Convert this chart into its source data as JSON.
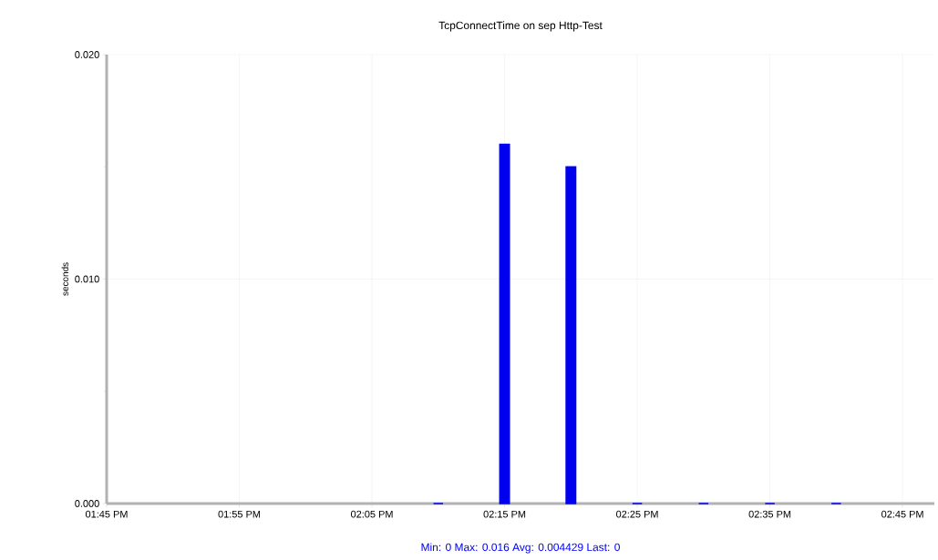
{
  "chart_data": {
    "type": "bar",
    "title": "TcpConnectTime on sep Http-Test",
    "ylabel": "seconds",
    "x": [
      14.166667,
      14.25,
      14.333333,
      14.416667,
      14.5,
      14.583333,
      14.666667
    ],
    "values": [
      0,
      0.016,
      0.015,
      0,
      0,
      0,
      0
    ],
    "color": "#0000ee",
    "xlim": [
      13.75,
      14.79
    ],
    "ylim": [
      0,
      0.02
    ],
    "xticks": [
      {
        "value": 13.75,
        "label": "01:45 PM"
      },
      {
        "value": 13.916667,
        "label": "01:55 PM"
      },
      {
        "value": 14.083333,
        "label": "02:05 PM"
      },
      {
        "value": 14.25,
        "label": "02:15 PM"
      },
      {
        "value": 14.416667,
        "label": "02:25 PM"
      },
      {
        "value": 14.583333,
        "label": "02:35 PM"
      },
      {
        "value": 14.75,
        "label": "02:45 PM"
      }
    ],
    "yticks": [
      {
        "value": 0,
        "label": "0.000"
      },
      {
        "value": 0.005,
        "label": null
      },
      {
        "value": 0.01,
        "label": "0.010"
      },
      {
        "value": 0.015,
        "label": null
      },
      {
        "value": 0.02,
        "label": "0.020"
      }
    ],
    "grid": true,
    "annotations": [
      "Min: 0  Max: 0.016  Avg: 0.004429  Last: 0"
    ]
  }
}
